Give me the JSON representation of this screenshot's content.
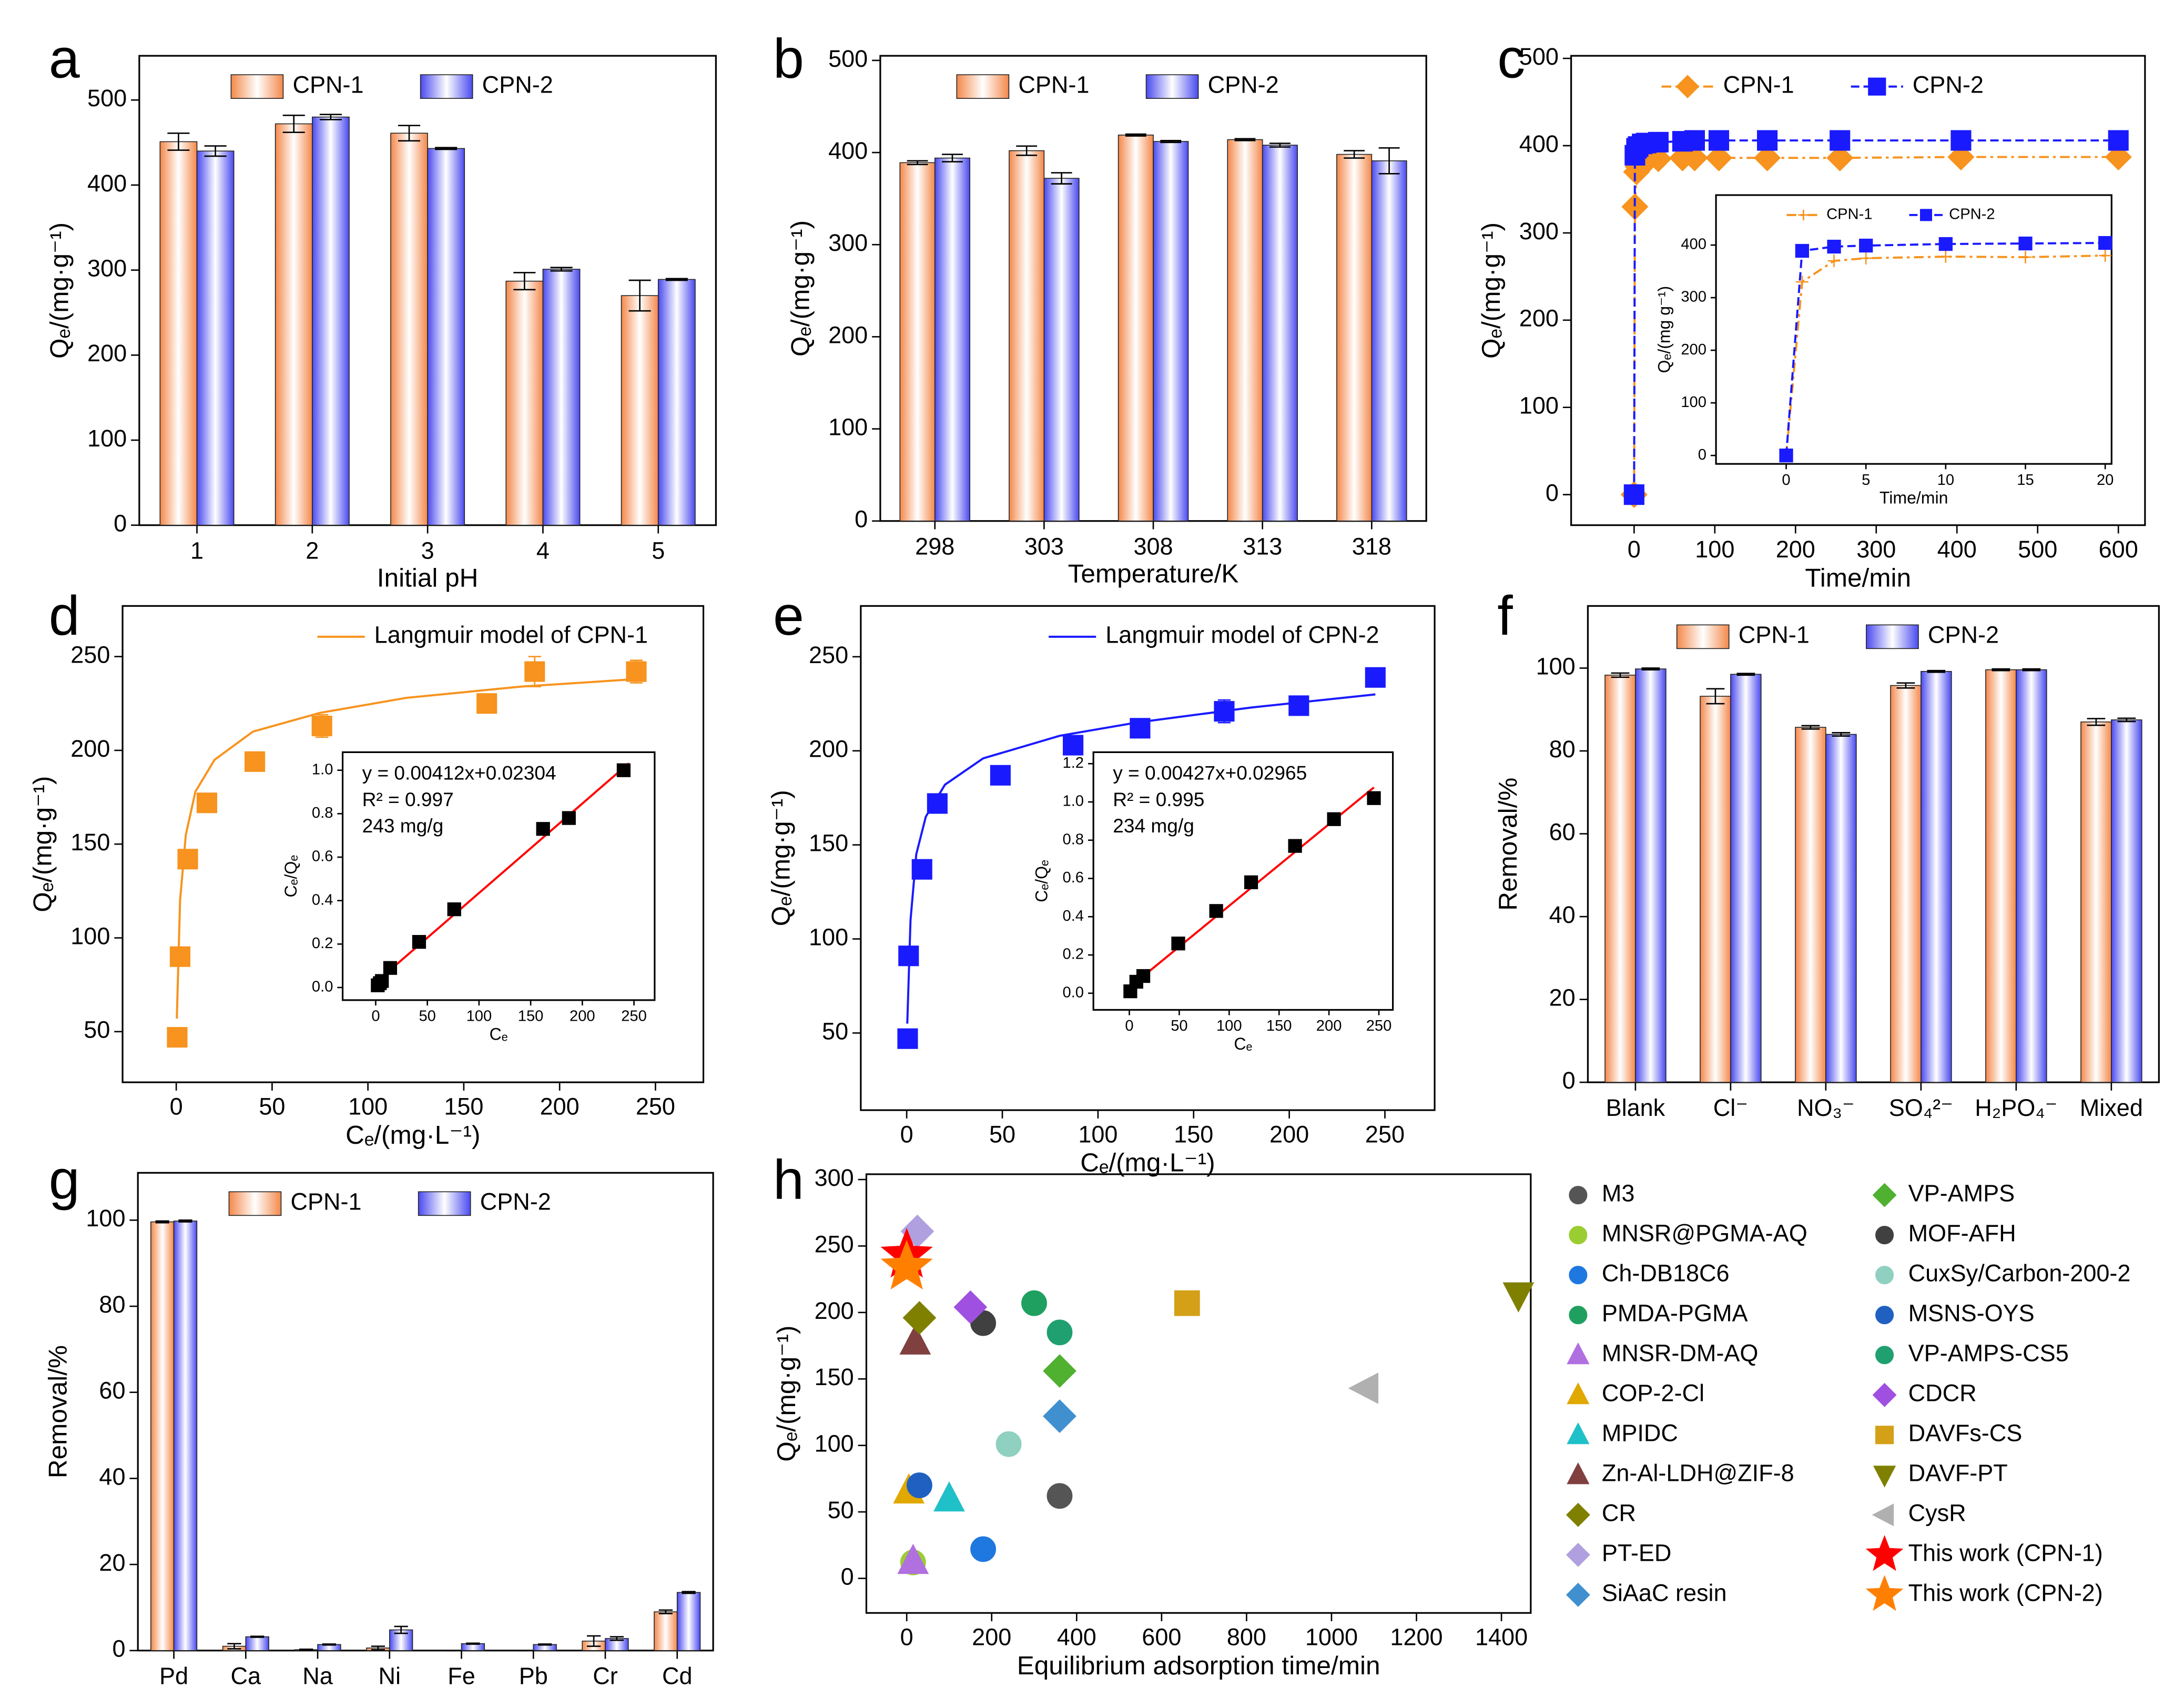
{
  "chart_data": [
    {
      "type": "bar",
      "letter": "a",
      "xlabel": "Initial pH",
      "ylabel": "Qₑ/(mg·g⁻¹)",
      "legend": "upper center",
      "categories": [
        "1",
        "2",
        "3",
        "4",
        "5"
      ],
      "ylim": [
        0,
        552
      ],
      "yticks": [
        0,
        100,
        200,
        300,
        400,
        500
      ],
      "series": [
        {
          "name": "CPN-1",
          "color": "#f4884a",
          "values": [
            451,
            472,
            461,
            287,
            270
          ],
          "errors": [
            10,
            10,
            9,
            10,
            18
          ]
        },
        {
          "name": "CPN-2",
          "color": "#4a4af0",
          "values": [
            440,
            480,
            443,
            301,
            289
          ],
          "errors": [
            6,
            3,
            1,
            2,
            1
          ]
        }
      ]
    },
    {
      "type": "bar",
      "letter": "b",
      "xlabel": "Temperature/K",
      "ylabel": "Qₑ/(mg·g⁻¹)",
      "legend": "upper center",
      "categories": [
        "298",
        "303",
        "308",
        "313",
        "318"
      ],
      "ylim": [
        0,
        505
      ],
      "yticks": [
        0,
        100,
        200,
        300,
        400,
        500
      ],
      "series": [
        {
          "name": "CPN-1",
          "color": "#f4884a",
          "values": [
            389,
            402,
            419,
            414,
            398
          ],
          "errors": [
            2,
            5,
            1,
            1,
            4
          ]
        },
        {
          "name": "CPN-2",
          "color": "#4a4af0",
          "values": [
            394,
            372,
            412,
            408,
            391
          ],
          "errors": [
            4,
            6,
            1,
            2,
            14
          ]
        }
      ]
    },
    {
      "type": "line",
      "letter": "c",
      "xlabel": "Time/min",
      "ylabel": "Qₑ/(mg·g⁻¹)",
      "legend": "upper center",
      "xlim": [
        -78,
        633
      ],
      "ylim": [
        -35,
        503
      ],
      "xticks": [
        0,
        100,
        200,
        300,
        400,
        500,
        600
      ],
      "yticks": [
        0,
        100,
        200,
        300,
        400,
        500
      ],
      "x": [
        0,
        1,
        3,
        5,
        10,
        15,
        30,
        60,
        75,
        105,
        165,
        255,
        405,
        600
      ],
      "series": [
        {
          "name": "CPN-1",
          "color": "#f7931e",
          "marker": "diamond",
          "line_style": "dash-dot",
          "values": [
            0,
            330,
            370,
            376,
            380,
            382,
            385,
            386,
            386,
            386,
            386,
            386,
            387,
            387
          ]
        },
        {
          "name": "CPN-2",
          "color": "#1a1aff",
          "marker": "square",
          "line_style": "dash",
          "values": [
            0,
            389,
            397,
            399,
            402,
            403,
            404,
            405,
            406,
            406,
            406,
            406,
            406,
            406
          ]
        }
      ],
      "inset": {
        "xlabel": "Time/min",
        "ylabel": "Qₑ/(mg g⁻¹)",
        "legend": "upper center",
        "xlim": [
          -4.4,
          20.4
        ],
        "ylim": [
          -16,
          495
        ],
        "xticks": [
          0,
          5,
          10,
          15,
          20
        ],
        "yticks": [
          0,
          100,
          200,
          300,
          400
        ],
        "x": [
          0,
          1,
          3,
          5,
          10,
          15,
          20
        ],
        "series": [
          {
            "name": "CPN-1",
            "color": "#f7931e",
            "marker": "plus",
            "line_style": "dash-dot",
            "values": [
              0,
              330,
              370,
              375,
              378,
              377,
              380
            ]
          },
          {
            "name": "CPN-2",
            "color": "#1a1aff",
            "marker": "square",
            "line_style": "dash",
            "values": [
              0,
              389,
              397,
              399,
              402,
              403,
              404
            ]
          }
        ]
      }
    },
    {
      "type": "scatter",
      "letter": "d",
      "xlabel": "Cₑ/(mg·L⁻¹)",
      "ylabel": "Qₑ/(mg·g⁻¹)",
      "legend": "upper right",
      "xlim": [
        -28,
        275
      ],
      "ylim": [
        23,
        277
      ],
      "xticks": [
        0,
        50,
        100,
        150,
        200,
        250
      ],
      "yticks": [
        50,
        100,
        150,
        200,
        250
      ],
      "series": [
        {
          "name": "Langmuir model of CPN-1",
          "color": "#f7931e",
          "line_style": "solid",
          "x": [
            0.3,
            2,
            5,
            10,
            20,
            40,
            75,
            120,
            180,
            240
          ],
          "values": [
            57,
            120,
            155,
            178,
            195,
            210,
            220,
            228,
            234,
            238
          ]
        },
        {
          "color": "#f7931e",
          "marker": "square",
          "x": [
            0.5,
            2,
            6,
            16,
            41,
            76,
            162,
            187,
            240
          ],
          "values": [
            47,
            90,
            142,
            172,
            194,
            213,
            225,
            242,
            242
          ],
          "errors": [
            0,
            0,
            0,
            0,
            0,
            6,
            0,
            8,
            6
          ]
        }
      ],
      "inset": {
        "xlabel": "Cₑ",
        "ylabel": "Cₑ/Qₑ",
        "xlim": [
          -32,
          270
        ],
        "ylim": [
          -0.058,
          1.083
        ],
        "xticks": [
          0,
          50,
          100,
          150,
          200,
          250
        ],
        "yticks": [
          {
            "value": 0,
            "label": "0.0"
          },
          0.2,
          0.4,
          0.6,
          0.8,
          {
            "value": 1,
            "label": "1.0"
          }
        ],
        "annotations": [
          "y = 0.00412x+0.02304",
          "R² = 0.997",
          "243 mg/g"
        ],
        "series": [
          {
            "color": "#ff0000",
            "line_style": "solid",
            "x": [
              0,
              245
            ],
            "values": [
              0.02304,
              1.032
            ]
          },
          {
            "color": "#000000",
            "marker": "square",
            "x": [
              2,
              4,
              6,
              14,
              42,
              76,
              162,
              187,
              240
            ],
            "values": [
              0.01,
              0.02,
              0.03,
              0.09,
              0.21,
              0.36,
              0.73,
              0.78,
              1.0
            ]
          }
        ]
      }
    },
    {
      "type": "scatter",
      "letter": "e",
      "xlabel": "Cₑ/(mg·L⁻¹)",
      "ylabel": "Qₑ/(mg·g⁻¹)",
      "legend": "upper right",
      "xlim": [
        -24,
        276
      ],
      "ylim": [
        9,
        277
      ],
      "xticks": [
        0,
        50,
        100,
        150,
        200,
        250
      ],
      "yticks": [
        50,
        100,
        150,
        200,
        250
      ],
      "series": [
        {
          "name": "Langmuir model of CPN-2",
          "color": "#1a1aff",
          "line_style": "solid",
          "x": [
            0.3,
            2,
            5,
            10,
            20,
            40,
            80,
            120,
            180,
            245
          ],
          "values": [
            55,
            110,
            145,
            165,
            182,
            196,
            208,
            215,
            223,
            230
          ]
        },
        {
          "color": "#1a1aff",
          "marker": "square",
          "x": [
            0.5,
            1,
            8,
            16,
            49,
            87,
            122,
            166,
            205,
            245
          ],
          "values": [
            47,
            91,
            137,
            172,
            187,
            203,
            212,
            221,
            224,
            239
          ],
          "errors": [
            0,
            0,
            4,
            0,
            5,
            5,
            0,
            6,
            3,
            5
          ]
        }
      ],
      "inset": {
        "xlabel": "Cₑ",
        "ylabel": "Cₑ/Qₑ",
        "xlim": [
          -36,
          264
        ],
        "ylim": [
          -0.087,
          1.26
        ],
        "xticks": [
          0,
          50,
          100,
          150,
          200,
          250
        ],
        "yticks": [
          {
            "value": 0,
            "label": "0.0"
          },
          0.2,
          0.4,
          0.6,
          0.8,
          {
            "value": 1,
            "label": "1.0"
          },
          1.2
        ],
        "annotations": [
          "y = 0.00427x+0.02965",
          "R² = 0.995",
          "234 mg/g"
        ],
        "series": [
          {
            "color": "#ff0000",
            "line_style": "solid",
            "x": [
              0,
              245
            ],
            "values": [
              0.02965,
              1.076
            ]
          },
          {
            "color": "#000000",
            "marker": "square",
            "x": [
              1,
              7,
              14,
              49,
              87,
              122,
              166,
              205,
              245
            ],
            "values": [
              0.01,
              0.06,
              0.09,
              0.26,
              0.43,
              0.58,
              0.77,
              0.91,
              1.02
            ]
          }
        ]
      }
    },
    {
      "type": "bar",
      "letter": "f",
      "ylabel": "Removal/%",
      "legend": "upper center",
      "categories": [
        "Blank",
        "Cl⁻",
        "NO₃⁻",
        "SO₄²⁻",
        "H₂PO₄⁻",
        "Mixed"
      ],
      "ylim": [
        0,
        115
      ],
      "yticks": [
        0,
        20,
        40,
        60,
        80,
        100
      ],
      "series": [
        {
          "name": "CPN-1",
          "color": "#f4884a",
          "values": [
            98.3,
            93.2,
            85.7,
            95.8,
            99.6,
            87
          ],
          "errors": [
            0.5,
            1.8,
            0.4,
            0.6,
            0.2,
            0.8
          ]
        },
        {
          "name": "CPN-2",
          "color": "#4a4af0",
          "values": [
            99.8,
            98.5,
            84.0,
            99.2,
            99.6,
            87.5
          ],
          "errors": [
            0.2,
            0.2,
            0.4,
            0.2,
            0.2,
            0.4
          ]
        }
      ]
    },
    {
      "type": "bar",
      "letter": "g",
      "ylabel": "Removal/%",
      "legend": "upper center",
      "categories": [
        "Pd",
        "Ca",
        "Na",
        "Ni",
        "Fe",
        "Pb",
        "Cr",
        "Cd"
      ],
      "ylim": [
        0,
        111
      ],
      "yticks": [
        0,
        20,
        40,
        60,
        80,
        100
      ],
      "series": [
        {
          "name": "CPN-1",
          "color": "#f4884a",
          "values": [
            99.6,
            1.0,
            0.2,
            0.6,
            0,
            0,
            2.2,
            9
          ],
          "errors": [
            0.2,
            0.6,
            0.1,
            0.4,
            0,
            0,
            1.2,
            0.4
          ]
        },
        {
          "name": "CPN-2",
          "color": "#4a4af0",
          "values": [
            99.8,
            3.2,
            1.4,
            4.8,
            1.6,
            1.4,
            2.8,
            13.5
          ],
          "errors": [
            0.2,
            0.1,
            0.1,
            0.8,
            0.1,
            0.1,
            0.4,
            0.2
          ]
        }
      ]
    },
    {
      "type": "scatter",
      "letter": "h",
      "xlabel": "Equilibrium adsorption time/min",
      "ylabel": "Qₑ/(mg·g⁻¹)",
      "legend": "outside right",
      "xlim": [
        -95,
        1469
      ],
      "ylim": [
        -26,
        304
      ],
      "xticks": [
        0,
        200,
        400,
        600,
        800,
        1000,
        1200,
        1400
      ],
      "yticks": [
        0,
        50,
        100,
        150,
        200,
        250,
        300
      ],
      "series": [
        {
          "name": "M3",
          "color": "#555555",
          "marker": "circle",
          "x": [
            360
          ],
          "values": [
            62
          ]
        },
        {
          "name": "MNSR@PGMA-AQ",
          "color": "#9acd32",
          "marker": "circle",
          "x": [
            15
          ],
          "values": [
            12
          ]
        },
        {
          "name": "Ch-DB18C6",
          "color": "#1e78e0",
          "marker": "circle",
          "x": [
            180
          ],
          "values": [
            22
          ]
        },
        {
          "name": "PMDA-PGMA",
          "color": "#20a060",
          "marker": "circle",
          "x": [
            300
          ],
          "values": [
            207
          ]
        },
        {
          "name": "MNSR-DM-AQ",
          "color": "#b070e0",
          "marker": "triangle",
          "x": [
            15
          ],
          "values": [
            13
          ]
        },
        {
          "name": "COP-2-Cl",
          "color": "#e0a800",
          "marker": "triangle",
          "x": [
            5
          ],
          "values": [
            66
          ]
        },
        {
          "name": "MPIDC",
          "color": "#20c0c8",
          "marker": "triangle",
          "x": [
            100
          ],
          "values": [
            60
          ]
        },
        {
          "name": "Zn-Al-LDH@ZIF-8",
          "color": "#804040",
          "marker": "triangle",
          "x": [
            20
          ],
          "values": [
            178
          ]
        },
        {
          "name": "CR",
          "color": "#808000",
          "marker": "diamond",
          "x": [
            30
          ],
          "values": [
            196
          ]
        },
        {
          "name": "PT-ED",
          "color": "#b0a0e0",
          "marker": "diamond",
          "x": [
            25
          ],
          "values": [
            261
          ]
        },
        {
          "name": "SiAaC resin",
          "color": "#4090d0",
          "marker": "diamond",
          "x": [
            360
          ],
          "values": [
            122
          ]
        },
        {
          "name": "VP-AMPS",
          "color": "#50b030",
          "marker": "diamond",
          "x": [
            360
          ],
          "values": [
            156
          ]
        },
        {
          "name": "MOF-AFH",
          "color": "#404040",
          "marker": "circle",
          "x": [
            180
          ],
          "values": [
            192
          ]
        },
        {
          "name": "CuxSy/Carbon-200-2",
          "color": "#90d0c0",
          "marker": "circle",
          "x": [
            240
          ],
          "values": [
            101
          ]
        },
        {
          "name": "MSNS-OYS",
          "color": "#2060c0",
          "marker": "circle",
          "x": [
            30
          ],
          "values": [
            70
          ]
        },
        {
          "name": "VP-AMPS-CS5",
          "color": "#20a070",
          "marker": "circle",
          "x": [
            360
          ],
          "values": [
            185
          ]
        },
        {
          "name": "CDCR",
          "color": "#a050e0",
          "marker": "diamond",
          "x": [
            150
          ],
          "values": [
            204
          ]
        },
        {
          "name": "DAVFs-CS",
          "color": "#d4a017",
          "marker": "square",
          "x": [
            660
          ],
          "values": [
            207
          ]
        },
        {
          "name": "DAVF-PT",
          "color": "#808000",
          "marker": "triangle-down",
          "x": [
            1440
          ],
          "values": [
            213
          ]
        },
        {
          "name": "CysR",
          "color": "#b0b0b0",
          "marker": "triangle-left",
          "x": [
            1080
          ],
          "values": [
            143
          ]
        },
        {
          "name": "This work (CPN-1)",
          "color": "#ff0000",
          "legend_color": "#ff0000",
          "marker": "star",
          "x": [
            0
          ],
          "values": [
            243
          ]
        },
        {
          "name": "This work (CPN-2)",
          "color": "#ff8000",
          "legend_color": "#ff0000",
          "marker": "star",
          "x": [
            0
          ],
          "values": [
            234
          ]
        }
      ]
    }
  ]
}
